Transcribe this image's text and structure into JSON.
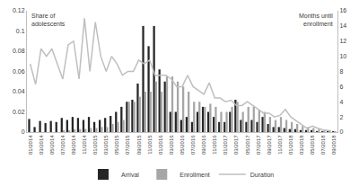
{
  "chart_data": {
    "type": "bar",
    "ylabel": "Share of adolescents",
    "y2label": "Months until enrollment",
    "categories": [
      "01/2014",
      null,
      "03/2014",
      null,
      "05/2014",
      null,
      "07/2014",
      null,
      "09/2014",
      null,
      "11/2014",
      null,
      "01/2015",
      null,
      "03/2015",
      null,
      "05/2015",
      null,
      "07/2015",
      null,
      "09/2015",
      null,
      "11/2015",
      null,
      "01/2016",
      null,
      "03/2016",
      null,
      "05/2016",
      null,
      "07/2016",
      null,
      "09/2016",
      null,
      "11/2016",
      null,
      "01/2017",
      null,
      "03/2017",
      null,
      "05/2017",
      null,
      "07/2017",
      null,
      "09/2017",
      null,
      "11/2017",
      null,
      "01/2018",
      null,
      "03/2018",
      null,
      "05/2018",
      null,
      "07/2018",
      null,
      "09/2018"
    ],
    "series": [
      {
        "name": "Arrival",
        "type": "bar",
        "color": "#262626",
        "values": [
          0.013,
          0.005,
          0.011,
          0.009,
          0.011,
          0.01,
          0.014,
          0.012,
          0.015,
          0.014,
          0.012,
          0.015,
          0.01,
          0.012,
          0.014,
          0.016,
          0.02,
          0.025,
          0.03,
          0.032,
          0.048,
          0.105,
          0.085,
          0.105,
          0.062,
          0.05,
          0.02,
          0.02,
          0.012,
          0.015,
          0.01,
          0.02,
          0.025,
          0.02,
          0.015,
          0.01,
          0.01,
          0.02,
          0.032,
          0.012,
          0.01,
          0.012,
          0.01,
          0.015,
          0.008,
          0.005,
          0.005,
          0.004,
          0.003,
          0.003,
          0.002,
          0.002,
          0.002,
          0.001,
          0.001,
          0.001,
          0.001
        ]
      },
      {
        "name": "Enrollment",
        "type": "bar",
        "color": "#a6a6a6",
        "values": [
          0,
          0,
          0,
          0,
          0,
          0,
          0.002,
          0.002,
          0.003,
          0.003,
          0.003,
          0.004,
          0.004,
          0.005,
          0.005,
          0.008,
          0.01,
          0.012,
          0.03,
          0.03,
          0.035,
          0.04,
          0.04,
          0.05,
          0.04,
          0.055,
          0.055,
          0.05,
          0.045,
          0.04,
          0.03,
          0.03,
          0.025,
          0.028,
          0.025,
          0.02,
          0.02,
          0.025,
          0.03,
          0.02,
          0.025,
          0.025,
          0.022,
          0.02,
          0.015,
          0.012,
          0.015,
          0.012,
          0.01,
          0.008,
          0.006,
          0.005,
          0.004,
          0.003,
          0.002,
          0.002,
          0.001
        ]
      },
      {
        "name": "Duration",
        "type": "line",
        "color": "#bfbfbf",
        "axis": "y2",
        "values": [
          9,
          6.3,
          11,
          10,
          11,
          9,
          7,
          11.5,
          12,
          7,
          15,
          8,
          14.5,
          10,
          8,
          10,
          9,
          7.5,
          8,
          8,
          9.5,
          9,
          9.5,
          7.5,
          7.5,
          7.5,
          7,
          6,
          6,
          7.5,
          6,
          5.5,
          5,
          6.5,
          4.5,
          4.5,
          4,
          4.2,
          3.5,
          3.5,
          4,
          3.5,
          3,
          2.5,
          2.5,
          2,
          2.2,
          3,
          2,
          1.5,
          1,
          0.5,
          0.8,
          0.5,
          0.3,
          0.2,
          null
        ]
      }
    ],
    "ylim": [
      0,
      0.12
    ],
    "yticks": [
      0,
      0.02,
      0.04,
      0.06,
      0.08,
      0.1,
      0.12
    ],
    "y2lim": [
      0,
      16
    ],
    "y2ticks": [
      0,
      2,
      4,
      6,
      8,
      10,
      12,
      14,
      16
    ],
    "grid": false,
    "legend": "bottom"
  }
}
